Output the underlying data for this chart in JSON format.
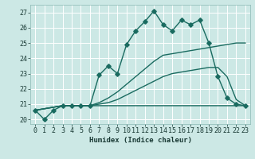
{
  "xlabel": "Humidex (Indice chaleur)",
  "bg_color": "#cce8e5",
  "grid_color": "#b0d8d4",
  "line_color": "#1a6b60",
  "xlim": [
    -0.5,
    23.5
  ],
  "ylim": [
    19.7,
    27.5
  ],
  "xticks": [
    0,
    1,
    2,
    3,
    4,
    5,
    6,
    7,
    8,
    9,
    10,
    11,
    12,
    13,
    14,
    15,
    16,
    17,
    18,
    19,
    20,
    21,
    22,
    23
  ],
  "yticks": [
    20,
    21,
    22,
    23,
    24,
    25,
    26,
    27
  ],
  "line1_x": [
    0,
    1,
    2,
    3,
    4,
    5,
    6,
    7,
    8,
    9,
    10,
    11,
    12,
    13,
    14,
    15,
    16,
    17,
    18,
    19,
    20,
    21,
    22,
    23
  ],
  "line1_y": [
    20.6,
    20.0,
    20.6,
    20.9,
    20.9,
    20.9,
    20.9,
    22.9,
    23.5,
    23.0,
    24.9,
    25.8,
    26.4,
    27.1,
    26.2,
    25.8,
    26.5,
    26.2,
    26.5,
    25.0,
    22.8,
    21.4,
    21.0,
    20.9
  ],
  "line2_x": [
    0,
    3,
    6,
    7,
    8,
    9,
    10,
    11,
    12,
    13,
    14,
    15,
    16,
    17,
    18,
    19,
    20,
    21,
    22,
    23
  ],
  "line2_y": [
    20.6,
    20.9,
    20.9,
    21.1,
    21.4,
    21.8,
    22.3,
    22.8,
    23.3,
    23.8,
    24.2,
    24.3,
    24.4,
    24.5,
    24.6,
    24.7,
    24.8,
    24.9,
    25.0,
    25.0
  ],
  "line3_x": [
    0,
    3,
    6,
    7,
    8,
    9,
    10,
    11,
    12,
    13,
    14,
    15,
    16,
    17,
    18,
    19,
    20,
    21,
    22,
    23
  ],
  "line3_y": [
    20.6,
    20.9,
    20.9,
    21.0,
    21.1,
    21.3,
    21.6,
    21.9,
    22.2,
    22.5,
    22.8,
    23.0,
    23.1,
    23.2,
    23.3,
    23.4,
    23.4,
    22.8,
    21.3,
    20.9
  ],
  "line4_x": [
    0,
    3,
    23
  ],
  "line4_y": [
    20.6,
    20.9,
    20.9
  ]
}
